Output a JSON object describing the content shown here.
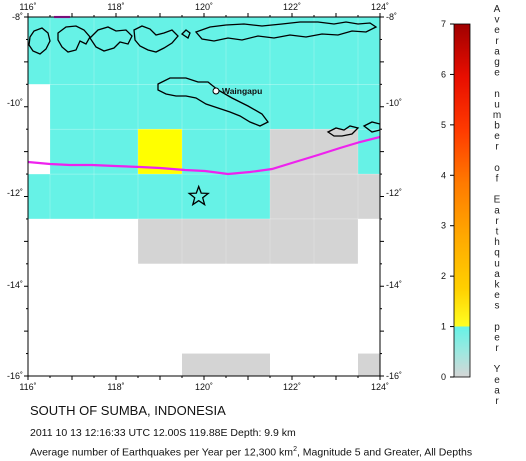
{
  "map": {
    "lon_ticks": [
      "116˚",
      "118˚",
      "120˚",
      "122˚",
      "124˚"
    ],
    "lat_ticks": [
      "-8˚",
      "-10˚",
      "-12˚",
      "-14˚",
      "-16˚"
    ],
    "city": "Waingapu",
    "epicenter": {
      "lon": 119.88,
      "lat": -12.0
    },
    "colors": {
      "cyan": "#66f2e6",
      "yellow": "#ffff00",
      "gray": "#d4d4d4",
      "plate_boundary": "#ee22ee"
    }
  },
  "legend": {
    "ticks": [
      "0",
      "1",
      "2",
      "3",
      "4",
      "5",
      "6",
      "7"
    ],
    "title_letters": [
      "A",
      "v",
      "e",
      "r",
      "a",
      "g",
      "e",
      "",
      "n",
      "u",
      "m",
      "b",
      "e",
      "r",
      "",
      "o",
      "f",
      "",
      "E",
      "a",
      "r",
      "t",
      "h",
      "q",
      "u",
      "a",
      "k",
      "e",
      "s",
      "",
      "p",
      "e",
      "r",
      "",
      "Y",
      "e",
      "a",
      "r"
    ]
  },
  "caption": {
    "title": "SOUTH OF SUMBA, INDONESIA",
    "line1": "2011 10 13 12:16:33 UTC 12.00S 119.88E Depth: 9.9 km",
    "line2_prefix": "Average number of Earthquakes per Year per 12,300 km",
    "line2_sup": "2",
    "line2_suffix": ", Magnitude 5 and Greater, All Depths"
  }
}
